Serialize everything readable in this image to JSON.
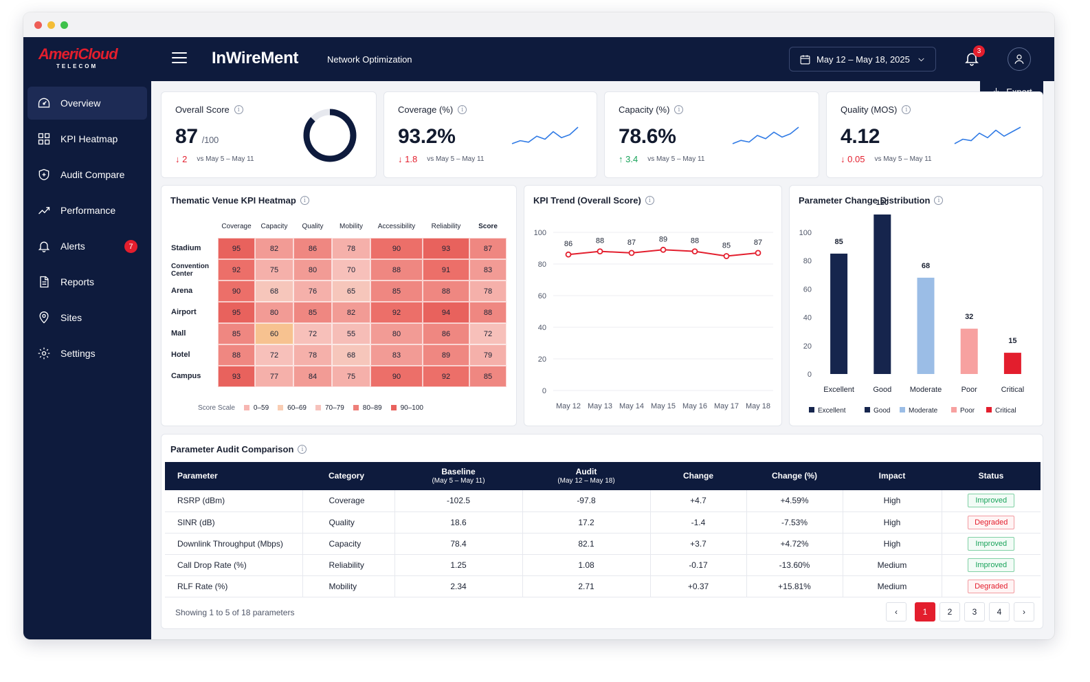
{
  "brand": {
    "logo_text": "AmeriCloud",
    "logo_sub": "TELECOM",
    "primary_color": "#0e1b3d",
    "accent_color": "#e31e2d"
  },
  "header": {
    "menu_icon": "hamburger-icon",
    "title": "InWireMent",
    "subtitle": "Network Optimization",
    "date_range": "May 12 – May 18, 2025",
    "notification_count": "3",
    "export_label": "Export"
  },
  "sidebar": {
    "items": [
      {
        "label": "Overview",
        "icon": "dashboard-icon",
        "active": true
      },
      {
        "label": "KPI Heatmap",
        "icon": "grid-icon"
      },
      {
        "label": "Audit Compare",
        "icon": "shield-plus-icon"
      },
      {
        "label": "Performance",
        "icon": "trend-icon"
      },
      {
        "label": "Alerts",
        "icon": "bell-icon",
        "badge": "7"
      },
      {
        "label": "Reports",
        "icon": "document-icon"
      },
      {
        "label": "Sites",
        "icon": "map-pin-icon"
      },
      {
        "label": "Settings",
        "icon": "gear-icon"
      }
    ]
  },
  "kpis": [
    {
      "label": "Overall Score",
      "value": "87",
      "suffix": "/100",
      "delta": "2",
      "direction": "down",
      "compare": "vs May 5 – May 11",
      "gauge_fraction": 0.87
    },
    {
      "label": "Coverage (%)",
      "value": "93.2%",
      "delta": "1.8",
      "direction": "down",
      "compare": "vs May 5 – May 11",
      "spark": [
        4,
        6,
        5,
        9,
        7,
        12,
        8,
        10,
        15
      ]
    },
    {
      "label": "Capacity (%)",
      "value": "78.6%",
      "delta": "3.4",
      "direction": "up",
      "compare": "vs May 5 – May 11",
      "spark": [
        5,
        7,
        6,
        10,
        8,
        12,
        9,
        11,
        15
      ]
    },
    {
      "label": "Quality (MOS)",
      "value": "4.12",
      "delta": "0.05",
      "direction": "down",
      "compare": "vs May 5 – May 11",
      "spark": [
        4,
        7,
        6,
        11,
        8,
        13,
        9,
        12,
        15
      ]
    }
  ],
  "heatmap": {
    "title": "Thematic Venue KPI Heatmap",
    "columns": [
      "Coverage",
      "Capacity",
      "Quality",
      "Mobility",
      "Accessibility",
      "Reliability",
      "Score"
    ],
    "rows": [
      {
        "name": "Stadium",
        "values": [
          95,
          82,
          86,
          78,
          90,
          93,
          87
        ]
      },
      {
        "name": "Convention Center",
        "values": [
          92,
          75,
          80,
          70,
          88,
          91,
          83
        ]
      },
      {
        "name": "Arena",
        "values": [
          90,
          68,
          76,
          65,
          85,
          88,
          78
        ]
      },
      {
        "name": "Airport",
        "values": [
          95,
          80,
          85,
          82,
          92,
          94,
          88
        ]
      },
      {
        "name": "Mall",
        "values": [
          85,
          60,
          72,
          55,
          80,
          86,
          72
        ]
      },
      {
        "name": "Hotel",
        "values": [
          88,
          72,
          78,
          68,
          83,
          89,
          79
        ]
      },
      {
        "name": "Campus",
        "values": [
          93,
          77,
          84,
          75,
          90,
          92,
          85
        ]
      }
    ],
    "legend_title": "Score Scale",
    "legend": [
      {
        "label": "0–59",
        "color": "#f7b6b2"
      },
      {
        "label": "60–69",
        "color": "#f9cdb3"
      },
      {
        "label": "70–79",
        "color": "#f6c2bc"
      },
      {
        "label": "80–89",
        "color": "#ee7f79"
      },
      {
        "label": "90–100",
        "color": "#e9625d"
      }
    ]
  },
  "chart_data": [
    {
      "type": "line",
      "title": "KPI Trend (Overall Score)",
      "x": [
        "May 12",
        "May 13",
        "May 14",
        "May 15",
        "May 16",
        "May 17",
        "May 18"
      ],
      "series": [
        {
          "values": [
            86,
            88,
            87,
            89,
            88,
            85,
            87
          ],
          "color": "#e31e2d"
        }
      ],
      "ylim": [
        0,
        100
      ],
      "yticks": [
        0,
        20,
        40,
        60,
        80,
        100
      ],
      "grid": true
    },
    {
      "type": "bar",
      "title": "Parameter Change Distribution",
      "categories": [
        "Excellent",
        "Good",
        "Moderate",
        "Poor",
        "Critical"
      ],
      "values": [
        85,
        120,
        68,
        32,
        15
      ],
      "colors": [
        "#16254d",
        "#16254d",
        "#9bbde6",
        "#f7a1a0",
        "#e31e2d"
      ],
      "yticks": [
        0,
        20,
        40,
        60,
        80,
        100
      ],
      "legend": [
        {
          "label": "Excellent",
          "color": "#16254d"
        },
        {
          "label": "Good",
          "color": "#16254d"
        },
        {
          "label": "Moderate",
          "color": "#9bbde6"
        },
        {
          "label": "Poor",
          "color": "#f7a1a0"
        },
        {
          "label": "Critical",
          "color": "#e31e2d"
        }
      ],
      "legend_position": "bottom"
    }
  ],
  "audit": {
    "title": "Parameter Audit Comparison",
    "headers": {
      "parameter": "Parameter",
      "category": "Category",
      "baseline": "Baseline",
      "baseline_sub": "(May 5 – May 11)",
      "audit": "Audit",
      "audit_sub": "(May 12 – May 18)",
      "change": "Change",
      "change_pct": "Change (%)",
      "impact": "Impact",
      "status": "Status"
    },
    "rows": [
      {
        "parameter": "RSRP (dBm)",
        "category": "Coverage",
        "baseline": "-102.5",
        "audit": "-97.8",
        "change": "+4.7",
        "change_pct": "+4.59%",
        "impact": "High",
        "status": "Improved"
      },
      {
        "parameter": "SINR (dB)",
        "category": "Quality",
        "baseline": "18.6",
        "audit": "17.2",
        "change": "-1.4",
        "change_pct": "-7.53%",
        "impact": "High",
        "status": "Degraded"
      },
      {
        "parameter": "Downlink Throughput (Mbps)",
        "category": "Capacity",
        "baseline": "78.4",
        "audit": "82.1",
        "change": "+3.7",
        "change_pct": "+4.72%",
        "impact": "High",
        "status": "Improved"
      },
      {
        "parameter": "Call Drop Rate (%)",
        "category": "Reliability",
        "baseline": "1.25",
        "audit": "1.08",
        "change": "-0.17",
        "change_pct": "-13.60%",
        "impact": "Medium",
        "status": "Improved"
      },
      {
        "parameter": "RLF Rate (%)",
        "category": "Mobility",
        "baseline": "2.34",
        "audit": "2.71",
        "change": "+0.37",
        "change_pct": "+15.81%",
        "impact": "Medium",
        "status": "Degraded"
      }
    ],
    "footer": "Showing 1 to 5 of 18 parameters",
    "pages": [
      "1",
      "2",
      "3",
      "4"
    ],
    "current_page": "1"
  }
}
